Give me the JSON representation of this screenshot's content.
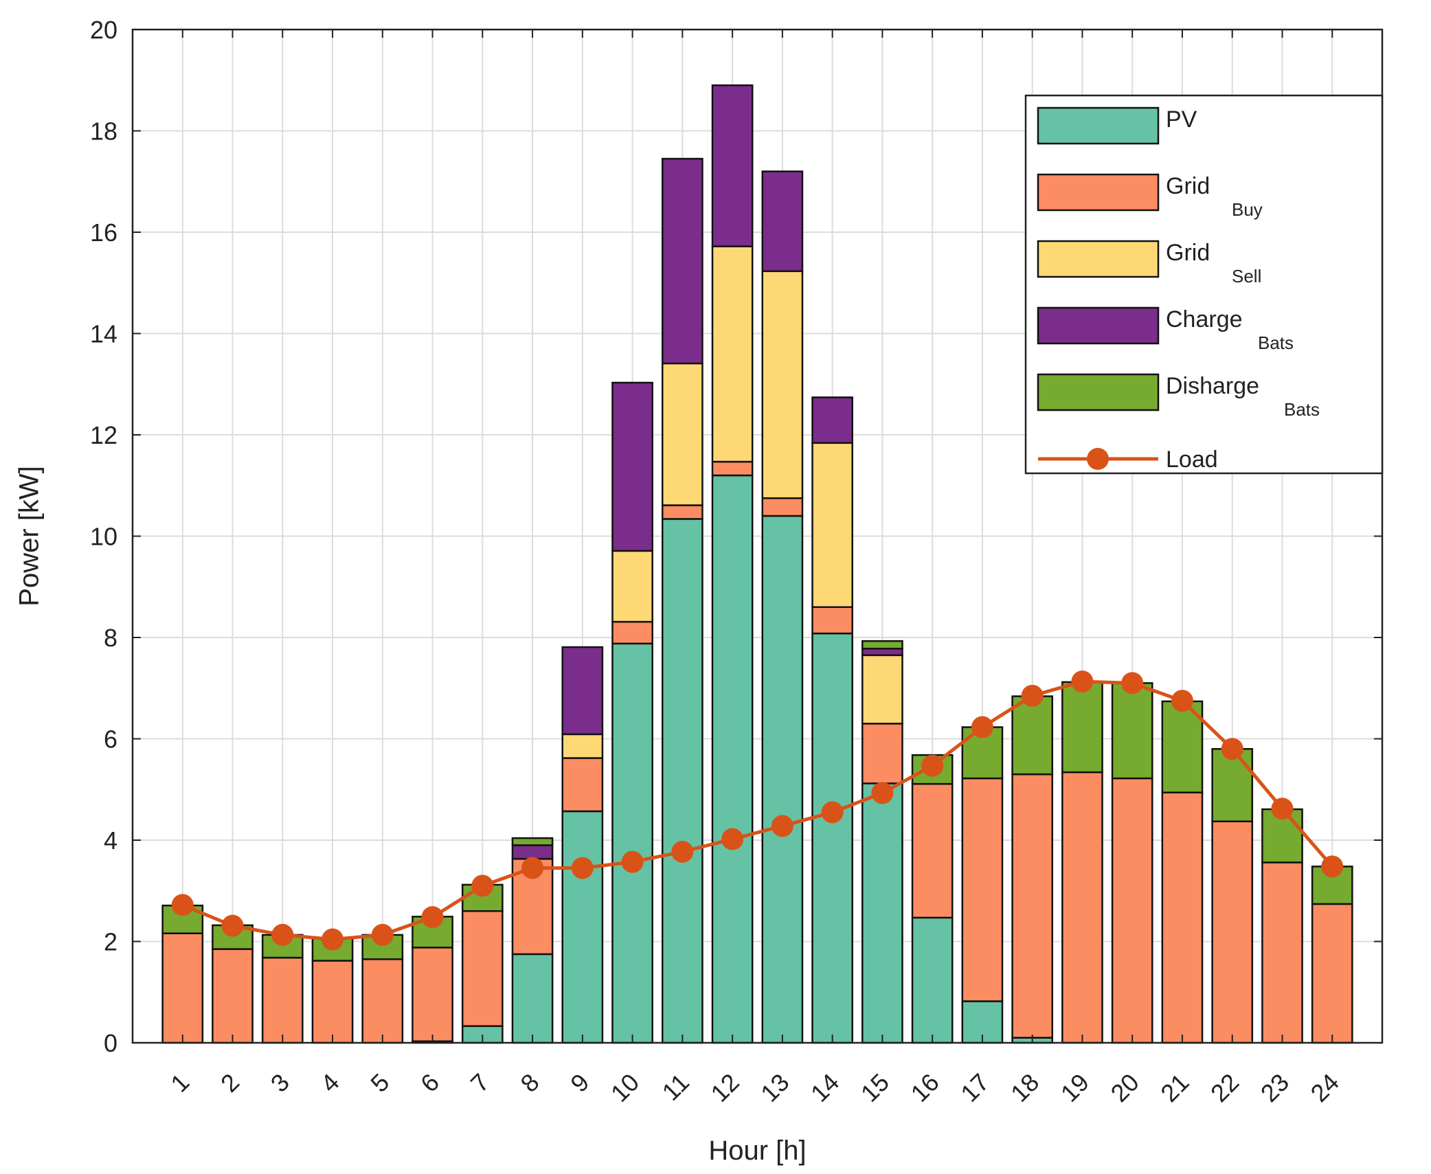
{
  "chart_data": {
    "type": "bar",
    "stacked": true,
    "title": "",
    "xlabel": "Hour [h]",
    "ylabel": "Power [kW]",
    "ylim": [
      0,
      20
    ],
    "yticks": [
      0,
      2,
      4,
      6,
      8,
      10,
      12,
      14,
      16,
      18,
      20
    ],
    "grid": true,
    "legend_position": "top-right",
    "categories": [
      "1",
      "2",
      "3",
      "4",
      "5",
      "6",
      "7",
      "8",
      "9",
      "10",
      "11",
      "12",
      "13",
      "14",
      "15",
      "16",
      "17",
      "18",
      "19",
      "20",
      "21",
      "22",
      "23",
      "24"
    ],
    "series": [
      {
        "name": "PV",
        "color": "#66c2a5",
        "values": [
          0,
          0,
          0,
          0,
          0,
          0.03,
          0.33,
          1.75,
          4.57,
          7.88,
          10.34,
          11.2,
          10.4,
          8.08,
          5.12,
          2.47,
          0.82,
          0.1,
          0,
          0,
          0,
          0,
          0,
          0
        ]
      },
      {
        "name": "Grid",
        "name_sub": "Buy",
        "color": "#fc8d62",
        "values": [
          2.16,
          1.85,
          1.68,
          1.62,
          1.65,
          1.85,
          2.27,
          1.88,
          1.05,
          0.43,
          0.27,
          0.27,
          0.35,
          0.52,
          1.18,
          2.64,
          4.4,
          5.2,
          5.34,
          5.22,
          4.94,
          4.37,
          3.56,
          2.74
        ]
      },
      {
        "name": "Grid",
        "name_sub": "Sell",
        "color": "#ffd876",
        "values": [
          0,
          0,
          0,
          0,
          0,
          0,
          0,
          0,
          0.47,
          1.4,
          2.8,
          4.25,
          4.48,
          3.24,
          1.35,
          0,
          0,
          0,
          0,
          0,
          0,
          0,
          0,
          0
        ]
      },
      {
        "name": "Charge",
        "name_sub": "Bats",
        "color": "#7b2d8b",
        "values": [
          0,
          0,
          0,
          0,
          0,
          0,
          0,
          0.27,
          1.72,
          3.32,
          4.04,
          3.18,
          1.97,
          0.9,
          0.13,
          0,
          0,
          0,
          0,
          0,
          0,
          0,
          0,
          0
        ]
      },
      {
        "name": "Disharge",
        "name_sub": "Bats",
        "color": "#76ab2f",
        "values": [
          0.55,
          0.47,
          0.45,
          0.45,
          0.48,
          0.61,
          0.52,
          0.14,
          0,
          0,
          0,
          0,
          0,
          0,
          0.15,
          0.57,
          1.01,
          1.54,
          1.78,
          1.88,
          1.8,
          1.43,
          1.05,
          0.74
        ]
      }
    ],
    "line": {
      "name": "Load",
      "color": "#d95319",
      "values": [
        2.72,
        2.31,
        2.13,
        2.04,
        2.13,
        2.48,
        3.1,
        3.45,
        3.45,
        3.57,
        3.77,
        4.02,
        4.28,
        4.55,
        4.93,
        5.47,
        6.23,
        6.85,
        7.13,
        7.1,
        6.75,
        5.8,
        4.62,
        3.48
      ]
    }
  }
}
